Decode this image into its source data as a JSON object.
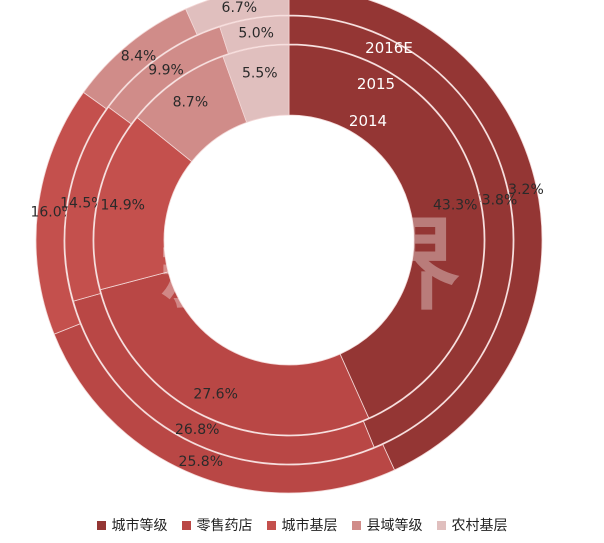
{
  "chart_data": {
    "type": "donut",
    "categories": [
      "城市等级",
      "零售药店",
      "城市基层",
      "县域等级",
      "农村基层"
    ],
    "colors": [
      "#943634",
      "#b94745",
      "#c4504d",
      "#d08c89",
      "#e0bfbe"
    ],
    "series": [
      {
        "name": "2016E",
        "values": [
          43.2,
          25.8,
          16.0,
          8.4,
          6.7
        ]
      },
      {
        "name": "2015",
        "values": [
          43.8,
          26.8,
          14.5,
          9.9,
          5.0
        ]
      },
      {
        "name": "2014",
        "values": [
          43.3,
          27.6,
          14.9,
          8.7,
          5.5
        ]
      }
    ],
    "value_labels": [
      [
        "43.2%",
        "25.8%",
        "16.0%",
        "8.4%",
        "6.7%"
      ],
      [
        "43.8%",
        "26.8%",
        "14.5%",
        "9.9%",
        "5.0%"
      ],
      [
        "43.3%",
        "27.6%",
        "14.9%",
        "8.7%",
        "5.5%"
      ]
    ],
    "legend_position": "bottom",
    "watermark": "新康界"
  }
}
